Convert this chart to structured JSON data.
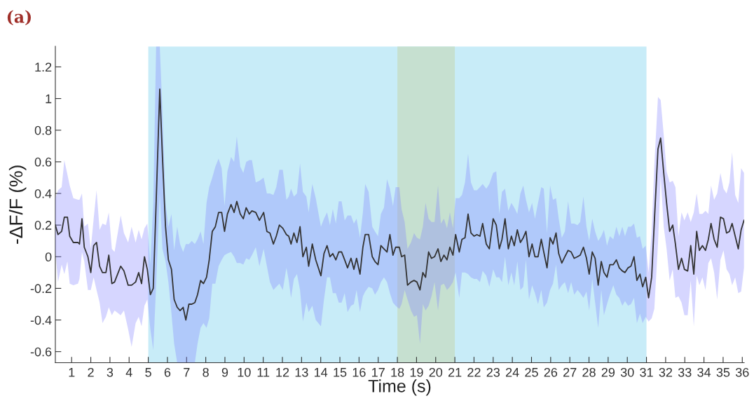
{
  "chart_data": {
    "type": "line",
    "title": "(a)",
    "xlabel": "Time (s)",
    "ylabel": "-ΔF/F (%)",
    "xlim": [
      0.15,
      36.1
    ],
    "ylim": [
      -0.67,
      1.33
    ],
    "xticks": [
      1,
      2,
      3,
      4,
      5,
      6,
      7,
      8,
      9,
      10,
      11,
      12,
      13,
      14,
      15,
      16,
      17,
      18,
      19,
      20,
      21,
      22,
      23,
      24,
      25,
      26,
      27,
      28,
      29,
      30,
      31,
      32,
      33,
      34,
      35,
      36
    ],
    "yticks": [
      -0.6,
      -0.4,
      -0.2,
      0,
      0.2,
      0.4,
      0.6,
      0.8,
      1,
      1.2
    ],
    "grid": false,
    "legend": false,
    "bands": [
      {
        "axis": "x",
        "from": 5,
        "to": 31,
        "color": "#c8ecf8"
      },
      {
        "axis": "x",
        "from": 18,
        "to": 21,
        "color": "#c6e0d0"
      }
    ],
    "series": [
      {
        "color": "#333333",
        "x": [
          0.15,
          0.29,
          0.48,
          0.62,
          0.78,
          0.9,
          1.09,
          1.33,
          1.41,
          1.54,
          1.66,
          1.85,
          2.0,
          2.15,
          2.3,
          2.46,
          2.61,
          2.79,
          2.94,
          3.1,
          3.24,
          3.56,
          3.73,
          3.95,
          4.13,
          4.34,
          4.5,
          4.65,
          4.8,
          4.95,
          5.11,
          5.26,
          5.41,
          5.6,
          5.74,
          5.9,
          6.05,
          6.21,
          6.35,
          6.51,
          6.66,
          6.82,
          6.96,
          7.12,
          7.27,
          7.43,
          7.57,
          7.73,
          7.88,
          8.04,
          8.18,
          8.34,
          8.5,
          8.67,
          8.83,
          8.98,
          9.13,
          9.32,
          9.48,
          9.62,
          9.8,
          9.96,
          10.11,
          10.27,
          10.41,
          10.61,
          10.8,
          11.02,
          11.19,
          11.35,
          11.53,
          11.68,
          11.84,
          12.02,
          12.21,
          12.33,
          12.45,
          12.6,
          12.76,
          12.92,
          13.07,
          13.25,
          13.37,
          13.56,
          13.74,
          14.01,
          14.17,
          14.33,
          14.48,
          14.63,
          14.79,
          14.94,
          15.09,
          15.25,
          15.4,
          15.58,
          15.73,
          15.87,
          16.05,
          16.2,
          16.32,
          16.5,
          16.69,
          16.83,
          16.99,
          17.14,
          17.3,
          17.46,
          17.61,
          17.77,
          17.91,
          18.1,
          18.22,
          18.38,
          18.53,
          18.71,
          18.87,
          19.02,
          19.18,
          19.33,
          19.47,
          19.63,
          19.78,
          19.94,
          20.12,
          20.27,
          20.43,
          20.59,
          20.74,
          20.9,
          21.04,
          21.23,
          21.37,
          21.53,
          21.69,
          21.84,
          22.0,
          22.15,
          22.31,
          22.45,
          22.64,
          22.8,
          23.0,
          23.16,
          23.32,
          23.46,
          23.62,
          23.79,
          23.95,
          24.1,
          24.26,
          24.42,
          24.57,
          24.71,
          24.87,
          25.03,
          25.18,
          25.34,
          25.51,
          25.64,
          25.81,
          25.97,
          26.12,
          26.28,
          26.42,
          26.58,
          26.74,
          26.91,
          27.07,
          27.23,
          27.4,
          27.54,
          27.71,
          27.87,
          28.01,
          28.17,
          28.32,
          28.48,
          28.64,
          28.78,
          28.94,
          29.09,
          29.27,
          29.43,
          29.58,
          29.74,
          29.88,
          30.04,
          30.19,
          30.35,
          30.5,
          30.66,
          30.8,
          30.96,
          31.11,
          31.27,
          31.41,
          31.6,
          31.74,
          31.9,
          32.05,
          32.21,
          32.37,
          32.51,
          32.67,
          32.83,
          32.98,
          33.15,
          33.31,
          33.47,
          33.62,
          33.76,
          33.92,
          34.08,
          34.23,
          34.37,
          34.53,
          34.69,
          34.86,
          35.02,
          35.18,
          35.33,
          35.47,
          35.63,
          35.79,
          35.94,
          36.09
        ],
        "values": [
          0.2,
          0.14,
          0.16,
          0.25,
          0.25,
          0.13,
          0.09,
          0.09,
          0.08,
          0.24,
          0.06,
          0.0,
          -0.1,
          0.07,
          0.09,
          -0.06,
          -0.1,
          -0.1,
          0.01,
          -0.17,
          -0.16,
          -0.06,
          -0.09,
          -0.18,
          -0.18,
          -0.16,
          -0.1,
          -0.17,
          0.0,
          -0.08,
          -0.24,
          -0.2,
          0.34,
          1.06,
          0.63,
          0.19,
          -0.02,
          -0.08,
          -0.27,
          -0.32,
          -0.34,
          -0.32,
          -0.4,
          -0.3,
          -0.3,
          -0.29,
          -0.24,
          -0.15,
          -0.17,
          -0.13,
          -0.02,
          0.16,
          0.19,
          0.28,
          0.28,
          0.16,
          0.27,
          0.33,
          0.28,
          0.35,
          0.27,
          0.24,
          0.31,
          0.27,
          0.29,
          0.28,
          0.23,
          0.28,
          0.16,
          0.15,
          0.08,
          0.13,
          0.2,
          0.18,
          0.14,
          0.13,
          0.08,
          0.15,
          0.09,
          0.19,
          0.0,
          0.06,
          -0.06,
          0.08,
          -0.02,
          -0.12,
          0.02,
          0.07,
          0.0,
          0.02,
          -0.02,
          0.03,
          0.03,
          -0.02,
          -0.07,
          -0.01,
          -0.08,
          -0.01,
          -0.11,
          0.06,
          0.14,
          0.14,
          0.0,
          -0.03,
          -0.05,
          0.07,
          0.05,
          0.03,
          0.14,
          0.01,
          0.06,
          0.06,
          0.0,
          0.01,
          -0.18,
          -0.16,
          -0.15,
          -0.16,
          -0.21,
          -0.1,
          -0.13,
          0.03,
          -0.01,
          0.0,
          0.05,
          -0.03,
          0.01,
          -0.02,
          0.06,
          0.01,
          0.14,
          0.03,
          0.11,
          0.12,
          0.27,
          0.15,
          0.13,
          0.14,
          0.13,
          0.21,
          0.08,
          0.05,
          0.24,
          0.2,
          0.05,
          0.11,
          0.24,
          0.05,
          0.13,
          0.07,
          0.17,
          0.09,
          0.12,
          0.16,
          0.0,
          0.08,
          0.0,
          0.0,
          0.11,
          0.03,
          -0.07,
          0.12,
          0.08,
          0.15,
          0.02,
          -0.04,
          0.0,
          0.04,
          0.03,
          -0.01,
          0.0,
          0.01,
          0.06,
          -0.01,
          -0.11,
          0.03,
          -0.01,
          -0.18,
          -0.03,
          -0.1,
          -0.13,
          -0.05,
          -0.05,
          -0.02,
          -0.07,
          -0.09,
          -0.1,
          -0.07,
          -0.06,
          0.0,
          -0.15,
          -0.11,
          -0.19,
          -0.13,
          -0.26,
          -0.13,
          0.22,
          0.68,
          0.75,
          0.53,
          0.34,
          0.16,
          0.2,
          0.08,
          -0.08,
          -0.01,
          -0.08,
          -0.09,
          0.07,
          -0.11,
          0.16,
          0.04,
          0.07,
          0.04,
          0.11,
          0.21,
          0.11,
          0.06,
          0.25,
          0.24,
          0.15,
          0.16,
          0.21,
          0.13,
          0.05,
          0.17,
          0.23
        ],
        "upper": [
          0.37,
          0.42,
          0.44,
          0.61,
          0.52,
          0.45,
          0.37,
          0.36,
          0.36,
          0.4,
          0.19,
          0.21,
          0.05,
          0.24,
          0.42,
          0.17,
          0.21,
          0.2,
          0.28,
          0.05,
          0.03,
          0.26,
          0.15,
          0.09,
          0.19,
          0.09,
          0.17,
          0.11,
          0.18,
          0.21,
          -0.05,
          0.34,
          1.33,
          1.33,
          0.92,
          0.34,
          0.19,
          0.27,
          0.04,
          0.19,
          0.08,
          0.03,
          0.08,
          0.08,
          0.1,
          0.08,
          0.11,
          0.16,
          0.08,
          0.34,
          0.44,
          0.5,
          0.57,
          0.62,
          0.56,
          0.32,
          0.54,
          0.63,
          0.6,
          0.76,
          0.57,
          0.53,
          0.6,
          0.61,
          0.61,
          0.47,
          0.48,
          0.5,
          0.4,
          0.4,
          0.39,
          0.44,
          0.55,
          0.55,
          0.36,
          0.38,
          0.43,
          0.38,
          0.4,
          0.59,
          0.41,
          0.38,
          0.28,
          0.46,
          0.37,
          0.19,
          0.24,
          0.28,
          0.2,
          0.3,
          0.21,
          0.35,
          0.35,
          0.23,
          0.26,
          0.26,
          0.21,
          0.24,
          0.12,
          0.28,
          0.46,
          0.41,
          0.19,
          0.16,
          0.13,
          0.27,
          0.31,
          0.49,
          0.43,
          0.32,
          0.44,
          0.44,
          0.3,
          0.22,
          0.05,
          0.09,
          0.15,
          0.12,
          0.11,
          0.19,
          0.34,
          0.24,
          0.22,
          0.22,
          0.45,
          0.21,
          0.24,
          0.18,
          0.28,
          0.18,
          0.37,
          0.37,
          0.39,
          0.47,
          0.65,
          0.47,
          0.42,
          0.42,
          0.44,
          0.46,
          0.43,
          0.46,
          0.53,
          0.54,
          0.27,
          0.41,
          0.43,
          0.29,
          0.34,
          0.31,
          0.27,
          0.4,
          0.45,
          0.36,
          0.28,
          0.34,
          0.24,
          0.34,
          0.44,
          0.43,
          0.15,
          0.45,
          0.36,
          0.37,
          0.24,
          0.12,
          0.16,
          0.35,
          0.21,
          0.21,
          0.2,
          0.22,
          0.38,
          0.19,
          0.1,
          0.24,
          0.16,
          0.1,
          0.13,
          0.17,
          0.07,
          0.13,
          0.11,
          0.19,
          0.13,
          0.19,
          0.13,
          0.19,
          0.19,
          0.21,
          0.12,
          0.13,
          0.05,
          0.07,
          -0.1,
          0.16,
          0.58,
          1.01,
          0.99,
          0.77,
          0.54,
          0.47,
          0.48,
          0.44,
          0.13,
          0.28,
          0.23,
          0.28,
          0.22,
          0.28,
          0.4,
          0.27,
          0.27,
          0.29,
          0.27,
          0.45,
          0.36,
          0.4,
          0.53,
          0.43,
          0.4,
          0.47,
          0.66,
          0.39,
          0.34,
          0.56,
          0.53
        ],
        "lower": [
          0.04,
          -0.16,
          -0.05,
          -0.11,
          -0.03,
          -0.17,
          -0.18,
          -0.17,
          -0.14,
          0.03,
          -0.03,
          -0.21,
          -0.21,
          -0.13,
          -0.21,
          -0.29,
          -0.42,
          -0.38,
          -0.32,
          -0.37,
          -0.34,
          -0.37,
          -0.34,
          -0.46,
          -0.57,
          -0.42,
          -0.38,
          -0.44,
          -0.31,
          -0.27,
          -0.46,
          -0.59,
          -0.18,
          0.4,
          0.05,
          -0.03,
          -0.16,
          -0.36,
          -0.55,
          -0.67,
          -0.67,
          -0.67,
          -0.67,
          -0.67,
          -0.67,
          -0.67,
          -0.55,
          -0.45,
          -0.42,
          -0.45,
          -0.39,
          -0.17,
          -0.17,
          -0.06,
          -0.02,
          0.01,
          0.02,
          0.03,
          0.0,
          -0.04,
          -0.04,
          -0.05,
          -0.01,
          -0.02,
          0.01,
          0.06,
          -0.06,
          0.05,
          -0.06,
          -0.16,
          -0.21,
          -0.19,
          -0.17,
          -0.21,
          -0.07,
          -0.15,
          -0.26,
          -0.14,
          -0.11,
          -0.21,
          -0.41,
          -0.29,
          -0.35,
          -0.31,
          -0.4,
          -0.44,
          -0.27,
          -0.13,
          -0.13,
          -0.23,
          -0.23,
          -0.29,
          -0.29,
          -0.23,
          -0.35,
          -0.31,
          -0.3,
          -0.21,
          -0.35,
          -0.25,
          -0.22,
          -0.19,
          -0.2,
          -0.24,
          -0.21,
          -0.16,
          -0.13,
          -0.16,
          -0.23,
          -0.29,
          -0.31,
          -0.33,
          -0.3,
          -0.21,
          -0.27,
          -0.34,
          -0.38,
          -0.37,
          -0.55,
          -0.3,
          -0.34,
          -0.31,
          -0.25,
          -0.16,
          -0.34,
          -0.18,
          -0.17,
          -0.21,
          -0.19,
          -0.16,
          -0.1,
          -0.26,
          -0.1,
          -0.1,
          -0.11,
          -0.13,
          -0.14,
          -0.14,
          -0.16,
          -0.09,
          -0.12,
          -0.19,
          -0.08,
          -0.13,
          -0.13,
          -0.16,
          0.0,
          -0.18,
          -0.1,
          -0.18,
          -0.03,
          -0.21,
          -0.19,
          -0.02,
          -0.27,
          -0.18,
          -0.23,
          -0.3,
          -0.21,
          -0.32,
          -0.29,
          -0.21,
          -0.17,
          -0.05,
          -0.21,
          -0.18,
          -0.16,
          -0.23,
          -0.16,
          -0.24,
          -0.21,
          -0.23,
          -0.26,
          -0.22,
          -0.34,
          -0.14,
          -0.29,
          -0.45,
          -0.21,
          -0.37,
          -0.3,
          -0.24,
          -0.18,
          -0.24,
          -0.26,
          -0.31,
          -0.28,
          -0.31,
          -0.3,
          -0.26,
          -0.42,
          -0.36,
          -0.42,
          -0.38,
          -0.41,
          -0.39,
          -0.33,
          0.08,
          0.51,
          0.19,
          0.05,
          -0.15,
          -0.08,
          -0.26,
          -0.25,
          -0.29,
          -0.37,
          -0.37,
          -0.15,
          -0.44,
          -0.12,
          -0.18,
          -0.13,
          -0.21,
          -0.04,
          -0.01,
          -0.1,
          -0.27,
          -0.02,
          0.04,
          -0.08,
          -0.11,
          -0.18,
          -0.13,
          -0.23,
          -0.22,
          -0.07
        ]
      }
    ]
  }
}
